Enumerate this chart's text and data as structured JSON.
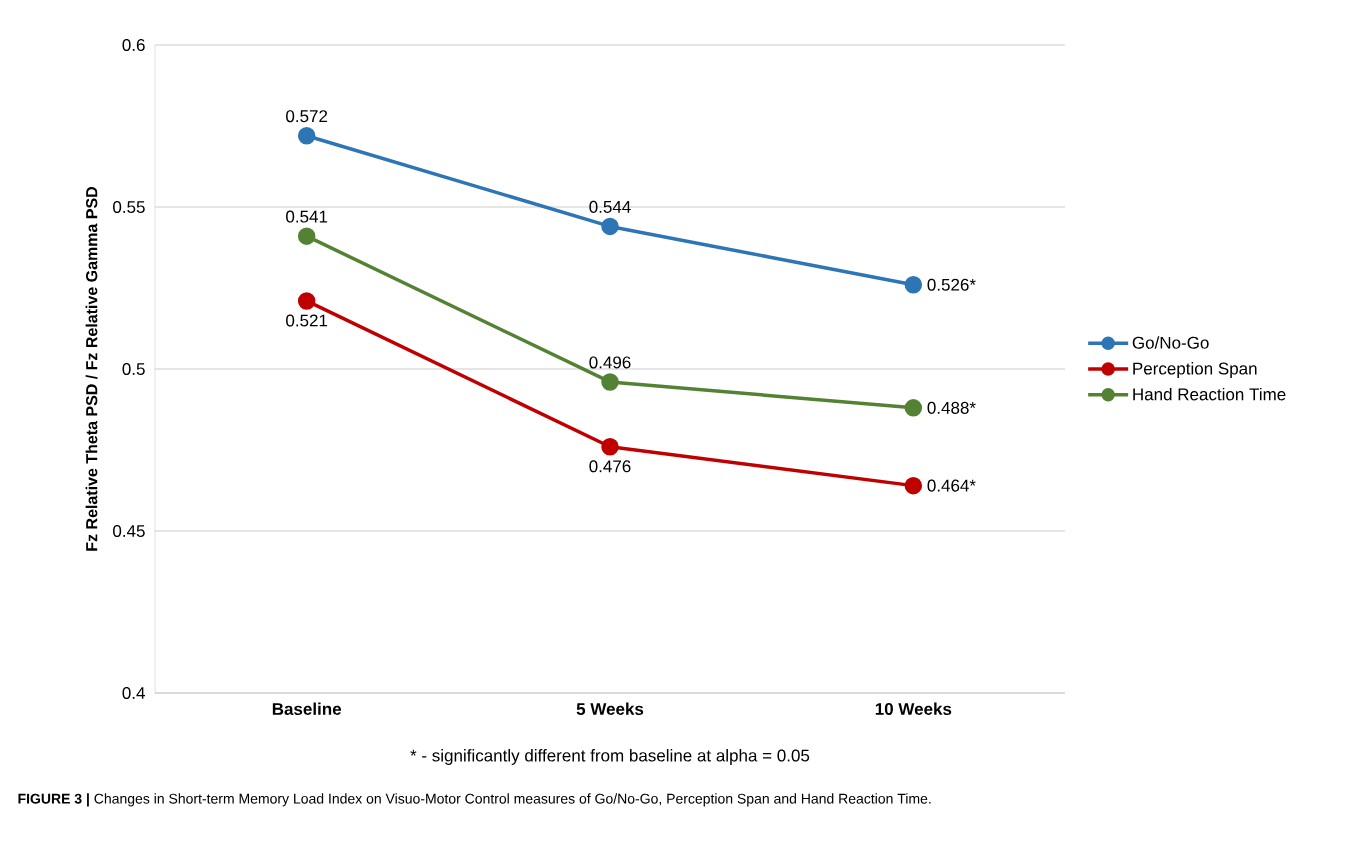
{
  "chart_data": {
    "type": "line",
    "ylabel": "Fz Relative Theta PSD / Fz Relative Gamma PSD",
    "categories": [
      "Baseline",
      "5 Weeks",
      "10 Weeks"
    ],
    "ylim": [
      0.4,
      0.6
    ],
    "yticks": [
      0.4,
      0.45,
      0.5,
      0.55,
      0.6
    ],
    "series": [
      {
        "name": "Go/No-Go",
        "color": "#2e75b6",
        "values": [
          0.572,
          0.544,
          0.526
        ],
        "value_labels": [
          "0.572",
          "0.544",
          "0.526*"
        ]
      },
      {
        "name": "Perception Span",
        "color": "#c00000",
        "values": [
          0.521,
          0.476,
          0.464
        ],
        "value_labels": [
          "0.521",
          "0.476",
          "0.464*"
        ]
      },
      {
        "name": "Hand Reaction Time",
        "color": "#548235",
        "values": [
          0.541,
          0.496,
          0.488
        ],
        "value_labels": [
          "0.541",
          "0.496",
          "0.488*"
        ]
      }
    ],
    "grid": "y",
    "legend": "right",
    "marker": "circle",
    "line_style": "solid",
    "annotations": [
      "* - significantly different from baseline at alpha = 0.05",
      "**FIGURE 3 |** Changes in Short-term Memory Load Index on Visuo-Motor Control measures of Go/No-Go, Perception Span and Hand Reaction Time."
    ]
  }
}
